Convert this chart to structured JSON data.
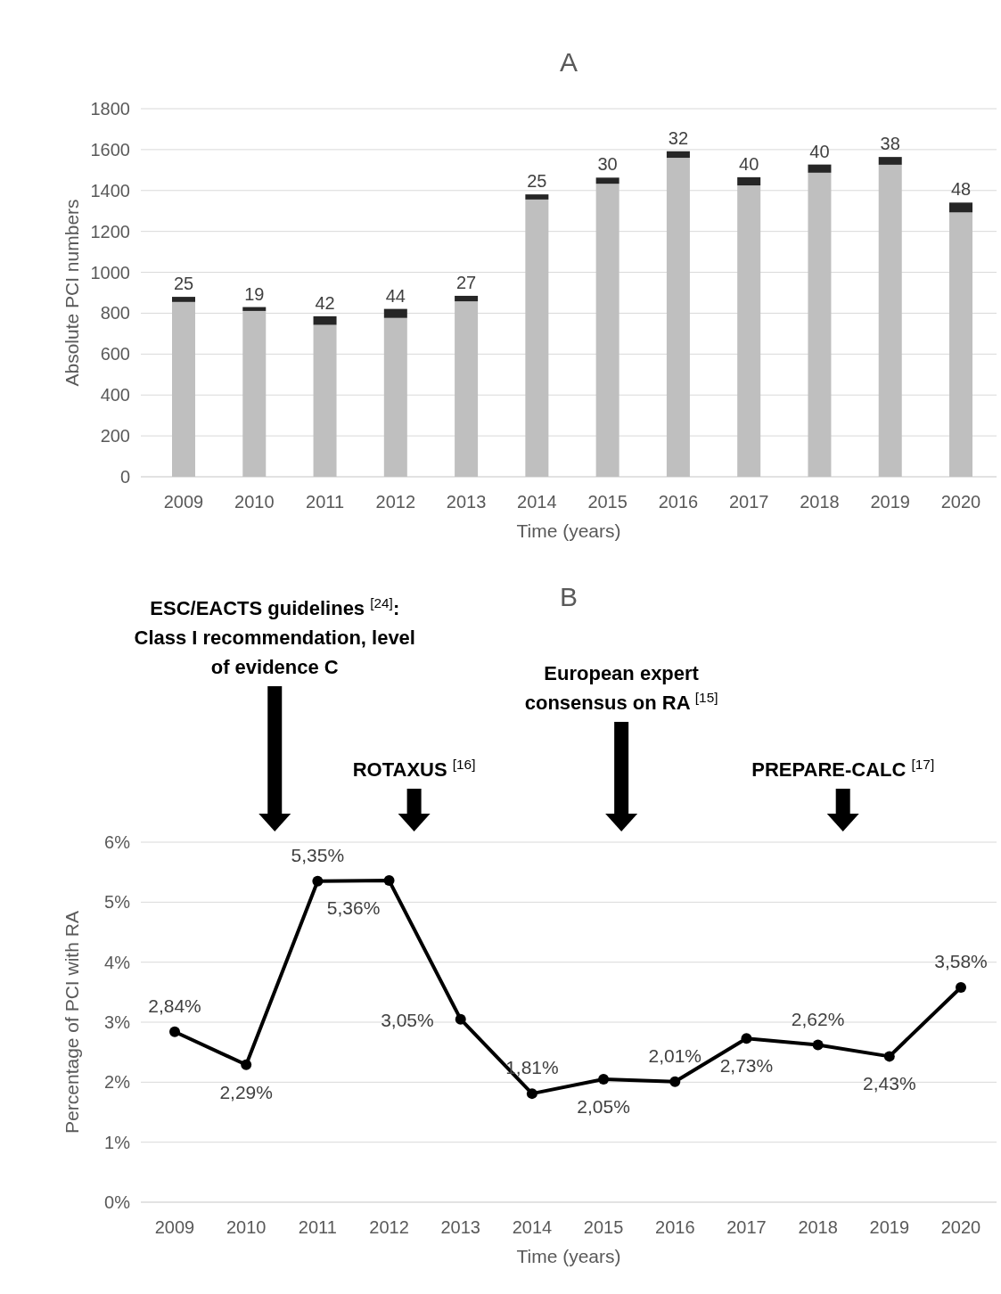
{
  "chart_data": [
    {
      "type": "bar",
      "title": "A",
      "xlabel": "Time (years)",
      "ylabel": "Absolute PCI numbers",
      "categories": [
        "2009",
        "2010",
        "2011",
        "2012",
        "2013",
        "2014",
        "2015",
        "2016",
        "2017",
        "2018",
        "2019",
        "2020"
      ],
      "stacked": true,
      "ylim": [
        0,
        1800
      ],
      "yticks": [
        0,
        200,
        400,
        600,
        800,
        1000,
        1200,
        1400,
        1600,
        1800
      ],
      "grid": "y",
      "series": [
        {
          "color": "#bfbfbf",
          "values": [
            855,
            811,
            743,
            777,
            858,
            1356,
            1433,
            1560,
            1425,
            1487,
            1526,
            1293
          ]
        },
        {
          "color": "#262626",
          "values": [
            25,
            19,
            42,
            44,
            27,
            25,
            30,
            32,
            40,
            40,
            38,
            48
          ],
          "value_labels": [
            "25",
            "19",
            "42",
            "44",
            "27",
            "25",
            "30",
            "32",
            "40",
            "40",
            "38",
            "48"
          ]
        }
      ]
    },
    {
      "type": "line",
      "title": "B",
      "xlabel": "Time (years)",
      "ylabel": "Percentage of PCI with RA",
      "categories": [
        "2009",
        "2010",
        "2011",
        "2012",
        "2013",
        "2014",
        "2015",
        "2016",
        "2017",
        "2018",
        "2019",
        "2020"
      ],
      "ylim": [
        0,
        6
      ],
      "yticks": [
        {
          "value": 0,
          "label": "0%"
        },
        {
          "value": 1,
          "label": "1%"
        },
        {
          "value": 2,
          "label": "2%"
        },
        {
          "value": 3,
          "label": "3%"
        },
        {
          "value": 4,
          "label": "4%"
        },
        {
          "value": 5,
          "label": "5%"
        },
        {
          "value": 6,
          "label": "6%"
        }
      ],
      "grid": "y",
      "marker": "circle",
      "line_style": "solid",
      "series": [
        {
          "color": "#000000",
          "values": [
            2.84,
            2.29,
            5.35,
            5.36,
            3.05,
            1.81,
            2.05,
            2.01,
            2.73,
            2.62,
            2.43,
            3.58
          ],
          "value_labels": [
            "2,84%",
            "2,29%",
            "5,35%",
            "5,36%",
            "3,05%",
            "1,81%",
            "2,05%",
            "2,01%",
            "2,73%",
            "2,62%",
            "2,43%",
            "3,58%"
          ]
        }
      ],
      "annotations": [
        "ESC/EACTS guidelines $^{[24]}$: Class I recommendation, level of evidence C",
        "ROTAXUS $^{[16]}$",
        "European expert consensus on RA $^{[15]}$",
        "PREPARE-CALC $^{[17]}$"
      ]
    }
  ]
}
